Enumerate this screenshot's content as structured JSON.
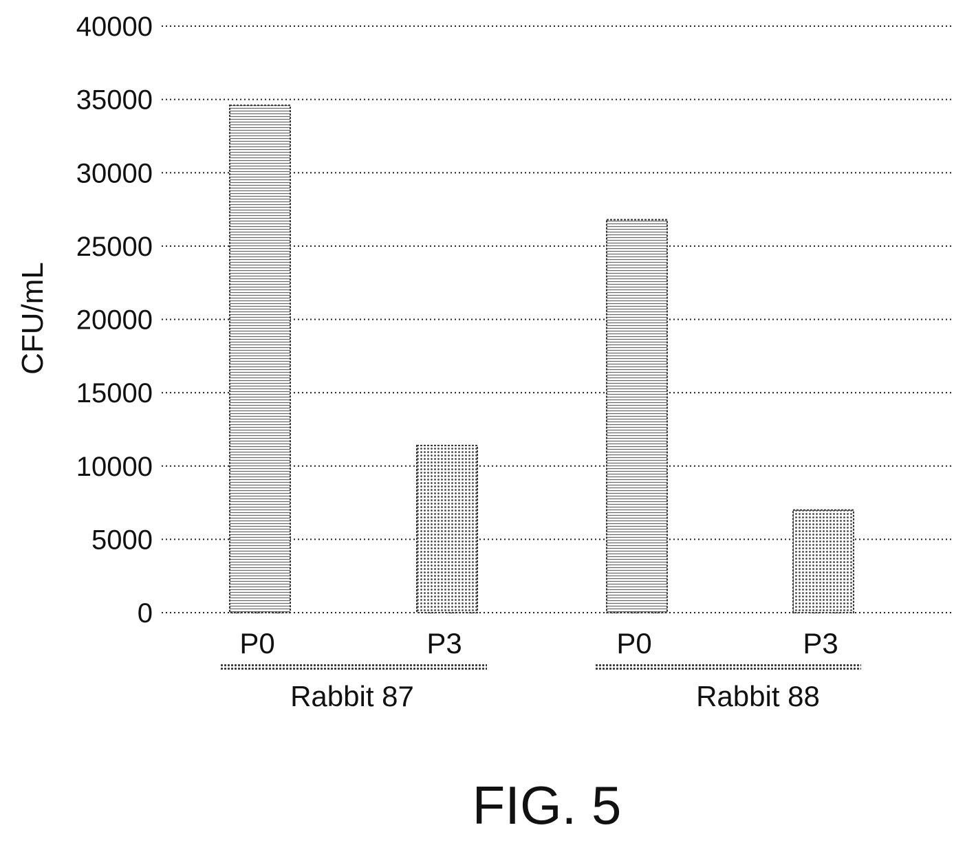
{
  "figure_caption": "FIG. 5",
  "chart_data": {
    "type": "bar",
    "ylabel": "CFU/mL",
    "xlabel": "",
    "ylim": [
      0,
      40000
    ],
    "yticks": [
      0,
      5000,
      10000,
      15000,
      20000,
      25000,
      30000,
      35000,
      40000
    ],
    "grid": true,
    "groups": [
      {
        "label": "Rabbit 87",
        "bars": [
          {
            "category": "P0",
            "value": 34600,
            "pattern": "horizontal-lines"
          },
          {
            "category": "P3",
            "value": 11400,
            "pattern": "dots"
          }
        ]
      },
      {
        "label": "Rabbit 88",
        "bars": [
          {
            "category": "P0",
            "value": 26800,
            "pattern": "horizontal-lines"
          },
          {
            "category": "P3",
            "value": 7000,
            "pattern": "dots"
          }
        ]
      }
    ]
  }
}
